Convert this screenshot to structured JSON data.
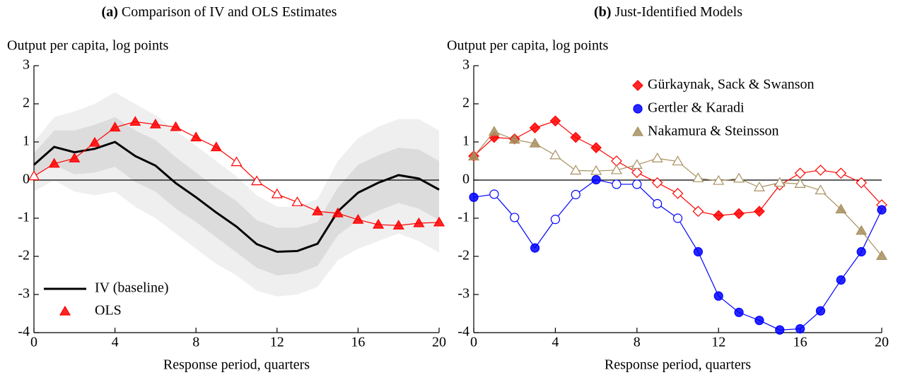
{
  "chart_data": [
    {
      "type": "line",
      "title_label": "(a)",
      "title": "Comparison of IV and OLS Estimates",
      "ylabel": "Output per capita, log points",
      "xlabel": "Response period, quarters",
      "x": [
        0,
        1,
        2,
        3,
        4,
        5,
        6,
        7,
        8,
        9,
        10,
        11,
        12,
        13,
        14,
        15,
        16,
        17,
        18,
        19,
        20
      ],
      "xlim": [
        0,
        20
      ],
      "xticks": [
        0,
        4,
        8,
        12,
        16,
        20
      ],
      "ylim": [
        -4,
        3
      ],
      "yticks": [
        -4,
        -3,
        -2,
        -1,
        0,
        1,
        2,
        3
      ],
      "legend": "lower left",
      "bands": [
        {
          "color": "#efefef",
          "upper": [
            1.0,
            1.65,
            1.8,
            2.0,
            2.3,
            2.0,
            1.7,
            1.3,
            0.9,
            0.5,
            0.1,
            -0.4,
            -0.7,
            -0.7,
            -0.5,
            0.5,
            1.1,
            1.4,
            1.6,
            1.6,
            1.3
          ],
          "lower": [
            -0.3,
            0.0,
            -0.3,
            -0.4,
            -0.3,
            -0.7,
            -1.0,
            -1.4,
            -1.8,
            -2.2,
            -2.5,
            -2.9,
            -3.05,
            -3.0,
            -2.8,
            -2.1,
            -1.8,
            -1.6,
            -1.4,
            -1.6,
            -1.9
          ]
        },
        {
          "color": "#dcdcdc",
          "upper": [
            0.7,
            1.3,
            1.3,
            1.45,
            1.65,
            1.3,
            1.05,
            0.6,
            0.2,
            -0.2,
            -0.55,
            -1.05,
            -1.25,
            -1.25,
            -1.1,
            -0.2,
            0.4,
            0.65,
            0.85,
            0.8,
            0.5
          ],
          "lower": [
            0.1,
            0.4,
            0.15,
            0.2,
            0.35,
            -0.05,
            -0.3,
            -0.75,
            -1.1,
            -1.5,
            -1.9,
            -2.3,
            -2.5,
            -2.45,
            -2.25,
            -1.45,
            -1.05,
            -0.8,
            -0.6,
            -0.75,
            -1.05
          ]
        }
      ],
      "series": [
        {
          "name": "IV (baseline)",
          "color": "#000000",
          "marker": "none",
          "line_width": 3,
          "values": [
            0.4,
            0.87,
            0.73,
            0.82,
            1.0,
            0.63,
            0.38,
            -0.08,
            -0.45,
            -0.85,
            -1.22,
            -1.68,
            -1.88,
            -1.86,
            -1.67,
            -0.82,
            -0.33,
            -0.07,
            0.13,
            0.04,
            -0.25
          ]
        },
        {
          "name": "OLS",
          "color": "#ff0000",
          "marker": "triangle",
          "line_width": 1.2,
          "values": [
            0.1,
            0.43,
            0.57,
            0.98,
            1.38,
            1.53,
            1.46,
            1.39,
            1.12,
            0.86,
            0.47,
            -0.03,
            -0.37,
            -0.58,
            -0.82,
            -0.87,
            -1.04,
            -1.17,
            -1.19,
            -1.13,
            -1.11
          ],
          "filled": [
            false,
            true,
            true,
            true,
            true,
            true,
            true,
            true,
            true,
            true,
            false,
            false,
            false,
            false,
            true,
            true,
            true,
            true,
            true,
            true,
            true
          ]
        }
      ]
    },
    {
      "type": "line",
      "title_label": "(b)",
      "title": "Just-Identified Models",
      "ylabel": "Output per capita, log points",
      "xlabel": "Response period, quarters",
      "x": [
        0,
        1,
        2,
        3,
        4,
        5,
        6,
        7,
        8,
        9,
        10,
        11,
        12,
        13,
        14,
        15,
        16,
        17,
        18,
        19,
        20
      ],
      "xlim": [
        0,
        20
      ],
      "xticks": [
        0,
        4,
        8,
        12,
        16,
        20
      ],
      "ylim": [
        -4,
        3
      ],
      "yticks": [
        -4,
        -3,
        -2,
        -1,
        0,
        1,
        2,
        3
      ],
      "legend": "upper right",
      "series": [
        {
          "name": "Gürkaynak, Sack & Swanson",
          "color": "#ff0000",
          "marker": "diamond",
          "line_width": 1.2,
          "values": [
            0.63,
            1.12,
            1.08,
            1.37,
            1.55,
            1.12,
            0.85,
            0.5,
            0.2,
            -0.07,
            -0.35,
            -0.82,
            -0.93,
            -0.88,
            -0.82,
            -0.13,
            0.18,
            0.26,
            0.18,
            -0.07,
            -0.65
          ],
          "filled": [
            true,
            true,
            true,
            true,
            true,
            true,
            true,
            false,
            false,
            false,
            false,
            false,
            true,
            true,
            true,
            false,
            false,
            false,
            false,
            false,
            false
          ]
        },
        {
          "name": "Gertler & Karadi",
          "color": "#0000ff",
          "marker": "circle",
          "line_width": 1.2,
          "values": [
            -0.45,
            -0.37,
            -0.98,
            -1.78,
            -1.03,
            -0.38,
            0.01,
            -0.11,
            -0.11,
            -0.62,
            -1.0,
            -1.88,
            -3.04,
            -3.47,
            -3.68,
            -3.93,
            -3.9,
            -3.43,
            -2.62,
            -1.88,
            -0.78
          ],
          "filled": [
            true,
            false,
            false,
            true,
            false,
            false,
            true,
            false,
            false,
            false,
            false,
            true,
            true,
            true,
            true,
            true,
            true,
            true,
            true,
            true,
            true
          ]
        },
        {
          "name": "Nakamura & Steinsson",
          "color": "#a89060",
          "marker": "triangle",
          "line_width": 1.2,
          "values": [
            0.62,
            1.27,
            1.06,
            0.96,
            0.65,
            0.25,
            0.24,
            0.26,
            0.4,
            0.57,
            0.49,
            0.05,
            -0.02,
            0.04,
            -0.19,
            -0.07,
            -0.1,
            -0.27,
            -0.77,
            -1.33,
            -1.99
          ],
          "filled": [
            true,
            true,
            true,
            true,
            false,
            false,
            false,
            false,
            false,
            false,
            false,
            false,
            false,
            false,
            false,
            false,
            false,
            false,
            true,
            true,
            true
          ]
        }
      ]
    }
  ]
}
